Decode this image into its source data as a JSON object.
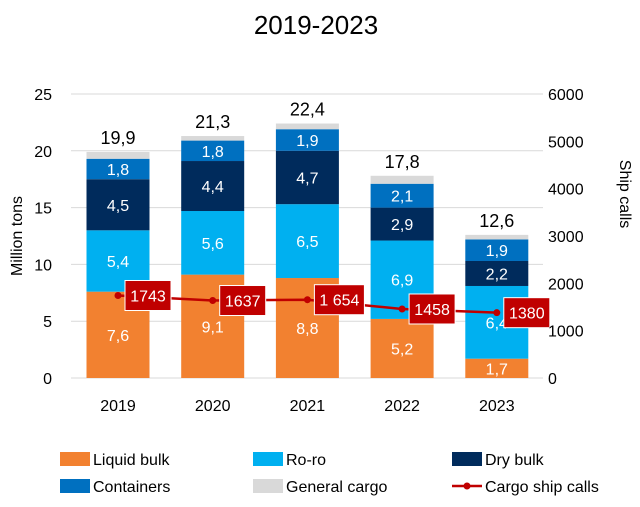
{
  "chart_data": {
    "type": "bar",
    "stacked": true,
    "title": "2019-2023",
    "categories": [
      "2019",
      "2020",
      "2021",
      "2022",
      "2023"
    ],
    "ylabel": "Million tons",
    "ylim": [
      0,
      25
    ],
    "yticks": [
      "0",
      "5",
      "10",
      "15",
      "20",
      "25"
    ],
    "y2label": "Ship calls",
    "y2lim": [
      0,
      6000
    ],
    "y2ticks": [
      "0",
      "1000",
      "2000",
      "3000",
      "4000",
      "5000",
      "6000"
    ],
    "grid": true,
    "legend_position": "bottom",
    "series": [
      {
        "name": "Liquid bulk",
        "color": "#F28130",
        "values": [
          7.6,
          9.1,
          8.8,
          5.2,
          1.7
        ],
        "labels": [
          "7,6",
          "9,1",
          "8,8",
          "5,2",
          "1,7"
        ]
      },
      {
        "name": "Ro-ro",
        "color": "#00B0F0",
        "values": [
          5.4,
          5.6,
          6.5,
          6.9,
          6.4
        ],
        "labels": [
          "5,4",
          "5,6",
          "6,5",
          "6,9",
          "6,4"
        ]
      },
      {
        "name": "Dry bulk",
        "color": "#002B5C",
        "values": [
          4.5,
          4.4,
          4.7,
          2.9,
          2.2
        ],
        "labels": [
          "4,5",
          "4,4",
          "4,7",
          "2,9",
          "2,2"
        ]
      },
      {
        "name": "Containers",
        "color": "#0070C0",
        "values": [
          1.8,
          1.8,
          1.9,
          2.1,
          1.9
        ],
        "labels": [
          "1,8",
          "1,8",
          "1,9",
          "2,1",
          "1,9"
        ]
      },
      {
        "name": "General cargo",
        "color": "#D9D9D9",
        "values": [
          0.6,
          0.4,
          0.5,
          0.7,
          0.4
        ],
        "labels": []
      }
    ],
    "totals": [
      "19,9",
      "21,3",
      "22,4",
      "17,8",
      "12,6"
    ],
    "line_series": {
      "name": "Cargo ship calls",
      "color": "#C00000",
      "axis": "right",
      "values": [
        1743,
        1637,
        1654,
        1458,
        1380
      ],
      "labels": [
        "1743",
        "1637",
        "1 654",
        "1458",
        "1380"
      ]
    }
  }
}
